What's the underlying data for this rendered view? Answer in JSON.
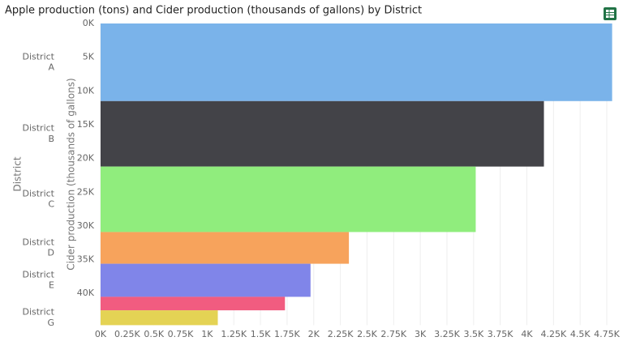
{
  "chart_data": {
    "type": "marimekko",
    "title": "Apple production (tons) and Cider production (thousands of gallons) by District",
    "category_axis_label": "District",
    "y_label": "Cider production (thousands of gallons)",
    "categories": [
      "District A",
      "District B",
      "District C",
      "District D",
      "District E",
      null,
      "District G"
    ],
    "values": [
      4800,
      4160,
      3520,
      2330,
      1970,
      1730,
      1100
    ],
    "heights": [
      11500,
      9700,
      9700,
      4700,
      4900,
      2000,
      2200
    ],
    "colors": [
      "#7ab3ea",
      "#434348",
      "#90ed7d",
      "#f7a35c",
      "#8085e9",
      "#f15c80",
      "#e4d354"
    ],
    "xlim": [
      0,
      4800
    ],
    "xticks": [
      {
        "value": 0,
        "label": "0K"
      },
      {
        "value": 250,
        "label": "0.25K"
      },
      {
        "value": 500,
        "label": "0.5K"
      },
      {
        "value": 750,
        "label": "0.75K"
      },
      {
        "value": 1000,
        "label": "1K"
      },
      {
        "value": 1250,
        "label": "1.25K"
      },
      {
        "value": 1500,
        "label": "1.5K"
      },
      {
        "value": 1750,
        "label": "1.75K"
      },
      {
        "value": 2000,
        "label": "2K"
      },
      {
        "value": 2250,
        "label": "2.25K"
      },
      {
        "value": 2500,
        "label": "2.5K"
      },
      {
        "value": 2750,
        "label": "2.75K"
      },
      {
        "value": 3000,
        "label": "3K"
      },
      {
        "value": 3250,
        "label": "3.25K"
      },
      {
        "value": 3500,
        "label": "3.5K"
      },
      {
        "value": 3750,
        "label": "3.75K"
      },
      {
        "value": 4000,
        "label": "4K"
      },
      {
        "value": 4250,
        "label": "4.25K"
      },
      {
        "value": 4500,
        "label": "4.5K"
      },
      {
        "value": 4750,
        "label": "4.75K"
      }
    ],
    "ylim": [
      0,
      44700
    ],
    "yticks": [
      {
        "value": 0,
        "label": "0K"
      },
      {
        "value": 5000,
        "label": "5K"
      },
      {
        "value": 10000,
        "label": "10K"
      },
      {
        "value": 15000,
        "label": "15K"
      },
      {
        "value": 20000,
        "label": "20K"
      },
      {
        "value": 25000,
        "label": "25K"
      },
      {
        "value": 30000,
        "label": "30K"
      },
      {
        "value": 35000,
        "label": "35K"
      },
      {
        "value": 40000,
        "label": "40K"
      }
    ],
    "grid": true
  }
}
